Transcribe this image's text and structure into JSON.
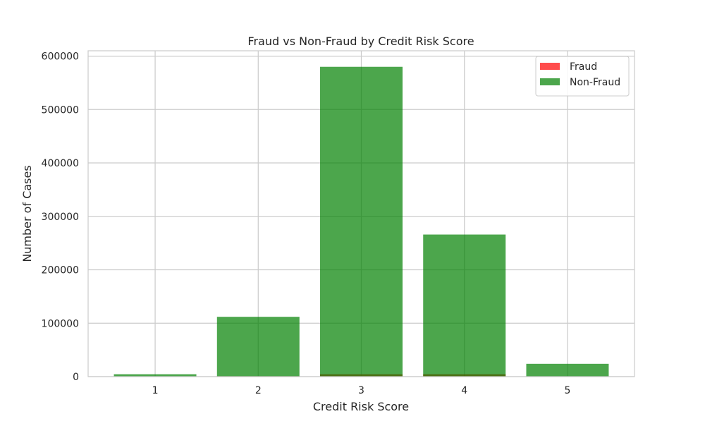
{
  "chart_data": {
    "type": "bar",
    "title": "Fraud vs Non-Fraud by Credit Risk Score",
    "xlabel": "Credit Risk Score",
    "ylabel": "Number of Cases",
    "categories": [
      "1",
      "2",
      "3",
      "4",
      "5"
    ],
    "series": [
      {
        "name": "Fraud",
        "color": "#ff0000",
        "opacity": 0.7,
        "values": [
          30,
          900,
          4500,
          4500,
          150
        ]
      },
      {
        "name": "Non-Fraud",
        "color": "#008000",
        "opacity": 0.7,
        "values": [
          4500,
          112000,
          580000,
          266000,
          24000
        ]
      }
    ],
    "ylim": [
      0,
      610000
    ],
    "yticks": [
      0,
      100000,
      200000,
      300000,
      400000,
      500000,
      600000
    ],
    "grid": true,
    "legend": "top-right",
    "overlay": true
  }
}
